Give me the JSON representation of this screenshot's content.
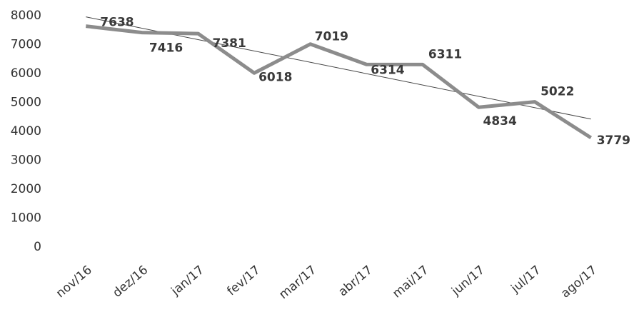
{
  "chart_data": {
    "type": "line",
    "categories": [
      "nov/16",
      "dez/16",
      "jan/17",
      "fev/17",
      "mar/17",
      "abr/17",
      "mai/17",
      "jun/17",
      "jul/17",
      "ago/17"
    ],
    "values": [
      7638,
      7416,
      7381,
      6018,
      7019,
      6314,
      6311,
      4834,
      5022,
      3779
    ],
    "color": "#8c8c8c",
    "trendline": true,
    "ylim": [
      0,
      8000
    ],
    "yticks": [
      0,
      1000,
      2000,
      3000,
      4000,
      5000,
      6000,
      7000,
      8000
    ]
  }
}
